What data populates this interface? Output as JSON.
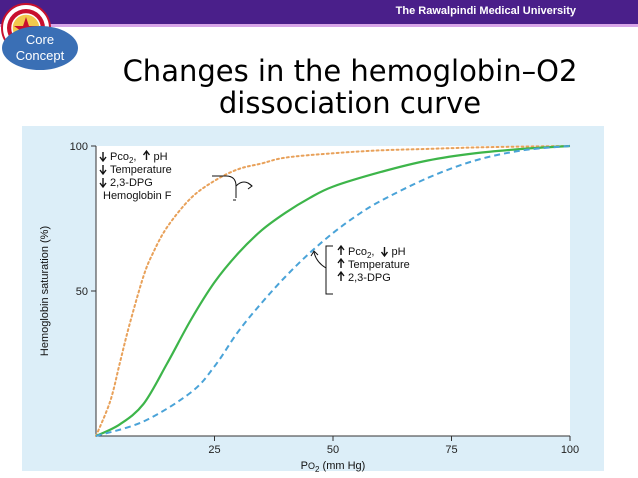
{
  "header": {
    "university": "The Rawalpindi Medical University",
    "logo_icon": "university-seal-icon",
    "bar_color": "#4a1f8a"
  },
  "badge": {
    "line1": "Core",
    "line2": "Concept",
    "color": "#3a6fb5"
  },
  "slide": {
    "title_line1": "Changes in the hemoglobin–O2",
    "title_line2": "dissociation curve"
  },
  "chart_data": {
    "type": "line",
    "xlabel_main": "P",
    "xlabel_sub": "O",
    "xlabel_sub2": "2",
    "xlabel_unit": " (mm Hg)",
    "ylabel": "Hemoglobin saturation (%)",
    "x_ticks": [
      25,
      50,
      75,
      100
    ],
    "y_ticks": [
      50,
      100
    ],
    "xlim": [
      0,
      100
    ],
    "ylim": [
      0,
      100
    ],
    "series": [
      {
        "style": "dotted",
        "color": "#e8a15a",
        "x": [
          0,
          3,
          5,
          7,
          10,
          12,
          15,
          20,
          25,
          30,
          35,
          40,
          50,
          60,
          70,
          80,
          90,
          100
        ],
        "y": [
          0,
          12,
          25,
          38,
          55,
          63,
          72,
          82,
          88,
          92,
          94,
          96,
          97.5,
          98.5,
          99,
          99.5,
          99.8,
          100
        ]
      },
      {
        "style": "solid",
        "color": "#3db54a",
        "x": [
          0,
          5,
          10,
          15,
          20,
          25,
          30,
          35,
          40,
          45,
          50,
          60,
          70,
          80,
          90,
          100
        ],
        "y": [
          0,
          4,
          11,
          25,
          40,
          53,
          63,
          71,
          77,
          82,
          86,
          91,
          95,
          97.5,
          99,
          100
        ]
      },
      {
        "style": "dashed",
        "color": "#4aa3d8",
        "x": [
          0,
          10,
          20,
          25,
          30,
          35,
          40,
          45,
          50,
          55,
          60,
          70,
          80,
          90,
          100
        ],
        "y": [
          0,
          5,
          15,
          24,
          36,
          46,
          55,
          63,
          70,
          76,
          81,
          89,
          95,
          98.5,
          100
        ]
      }
    ],
    "annotation_left": {
      "lines": [
        {
          "arrow": "down",
          "text": "Pco",
          "sub": "2",
          "suffix": ",",
          "arrow2": "up",
          "text2": "pH"
        },
        {
          "arrow": "down",
          "text": "Temperature"
        },
        {
          "arrow": "down",
          "text": "2,3-DPG"
        },
        {
          "arrow": "",
          "text": "Hemoglobin F"
        }
      ]
    },
    "annotation_right": {
      "lines": [
        {
          "arrow": "up",
          "text": "Pco",
          "sub": "2",
          "suffix": ",",
          "arrow2": "down",
          "text2": "pH"
        },
        {
          "arrow": "up",
          "text": "Temperature"
        },
        {
          "arrow": "up",
          "text": "2,3-DPG"
        }
      ]
    }
  }
}
